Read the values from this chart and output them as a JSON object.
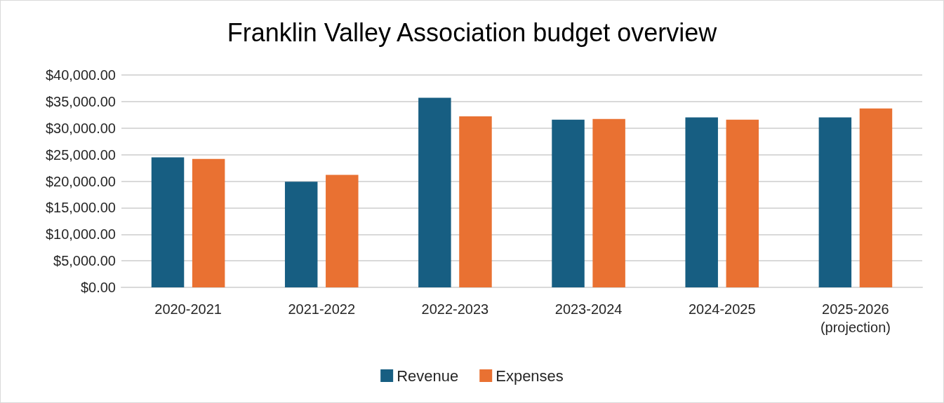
{
  "chart_data": {
    "type": "bar",
    "title": "Franklin Valley Association budget overview",
    "categories": [
      "2020-2021",
      "2021-2022",
      "2022-2023",
      "2023-2024",
      "2024-2025",
      "2025-2026\n(projection)"
    ],
    "series": [
      {
        "name": "Revenue",
        "color": "#175e82",
        "values": [
          24500,
          19900,
          35700,
          31600,
          32000,
          32000
        ]
      },
      {
        "name": "Expenses",
        "color": "#e97132",
        "values": [
          24200,
          21200,
          32200,
          31700,
          31600,
          33700
        ]
      }
    ],
    "ylim": [
      0,
      40000
    ],
    "yticks": [
      {
        "value": 0,
        "label": "$0.00"
      },
      {
        "value": 5000,
        "label": "$5,000.00"
      },
      {
        "value": 10000,
        "label": "$10,000.00"
      },
      {
        "value": 15000,
        "label": "$15,000.00"
      },
      {
        "value": 20000,
        "label": "$20,000.00"
      },
      {
        "value": 25000,
        "label": "$25,000.00"
      },
      {
        "value": 30000,
        "label": "$30,000.00"
      },
      {
        "value": 35000,
        "label": "$35,000.00"
      },
      {
        "value": 40000,
        "label": "$40,000.00"
      }
    ],
    "grid": "y",
    "legend": "bottom"
  }
}
